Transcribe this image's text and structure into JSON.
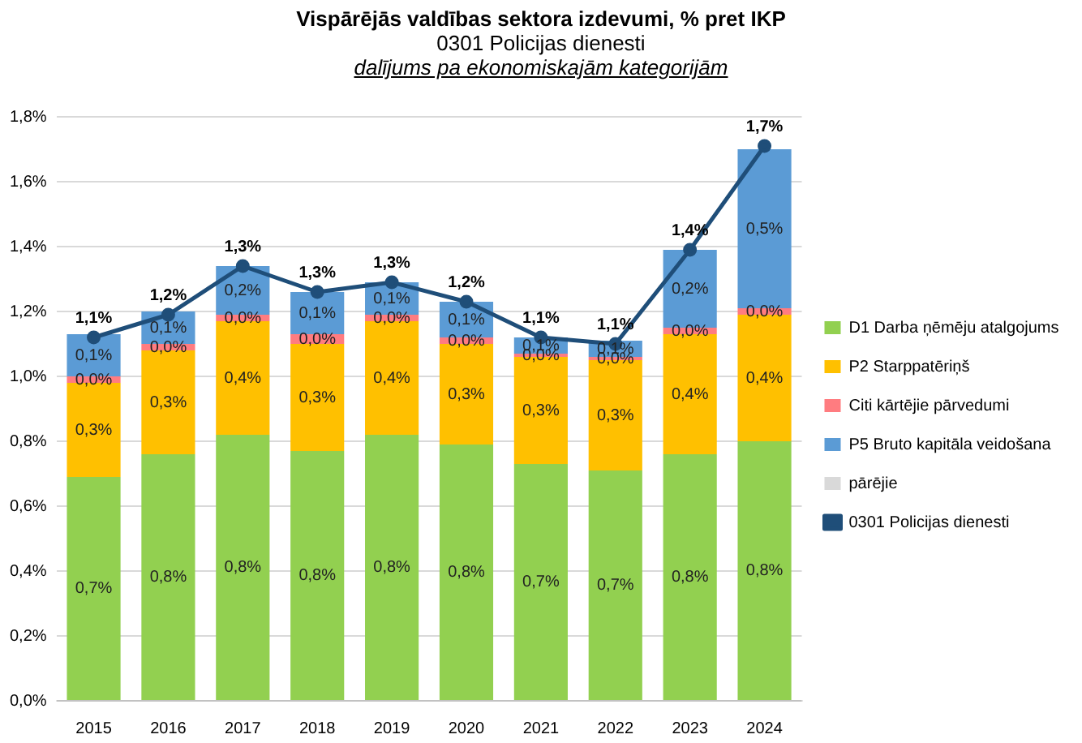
{
  "chart_data": {
    "type": "bar",
    "stacked": true,
    "title": "Vispārējās valdības sektora izdevumi, % pret IKP",
    "subtitle": "0301 Policijas dienesti",
    "annotations": [
      "dalījums pa ekonomiskajām kategorijām"
    ],
    "categories": [
      "2015",
      "2016",
      "2017",
      "2018",
      "2019",
      "2020",
      "2021",
      "2022",
      "2023",
      "2024"
    ],
    "ylim": [
      0,
      1.8
    ],
    "yticks": [
      {
        "value": 0,
        "label": "0,0%"
      },
      {
        "value": 0.2,
        "label": "0,2%"
      },
      {
        "value": 0.4,
        "label": "0,4%"
      },
      {
        "value": 0.6,
        "label": "0,6%"
      },
      {
        "value": 0.8,
        "label": "0,8%"
      },
      {
        "value": 1,
        "label": "1,0%"
      },
      {
        "value": 1.2,
        "label": "1,2%"
      },
      {
        "value": 1.4,
        "label": "1,4%"
      },
      {
        "value": 1.6,
        "label": "1,6%"
      },
      {
        "value": 1.8,
        "label": "1,8%"
      }
    ],
    "grid": "y",
    "legend": "right",
    "series": [
      {
        "name": "D1 Darba ņēmēju atalgojums",
        "color": "#92d050",
        "values": [
          0.69,
          0.76,
          0.82,
          0.77,
          0.82,
          0.79,
          0.73,
          0.71,
          0.76,
          0.8
        ],
        "value_labels": [
          "0,7%",
          "0,8%",
          "0,8%",
          "0,8%",
          "0,8%",
          "0,8%",
          "0,7%",
          "0,7%",
          "0,8%",
          "0,8%"
        ]
      },
      {
        "name": "P2 Starppatēriņš",
        "color": "#ffc000",
        "values": [
          0.29,
          0.32,
          0.35,
          0.33,
          0.35,
          0.31,
          0.33,
          0.34,
          0.37,
          0.39
        ],
        "value_labels": [
          "0,3%",
          "0,3%",
          "0,4%",
          "0,3%",
          "0,4%",
          "0,3%",
          "0,3%",
          "0,3%",
          "0,4%",
          "0,4%"
        ]
      },
      {
        "name": "Citi kārtējie pārvedumi",
        "color": "#ff7c80",
        "values": [
          0.02,
          0.02,
          0.02,
          0.03,
          0.02,
          0.02,
          0.01,
          0.01,
          0.02,
          0.02
        ],
        "value_labels": [
          "0,0%",
          "0,0%",
          "0,0%",
          "0,0%",
          "0,0%",
          "0,0%",
          "0,0%",
          "0,0%",
          "0,0%",
          "0,0%"
        ]
      },
      {
        "name": "P5 Bruto kapitāla veidošana",
        "color": "#5b9bd5",
        "values": [
          0.13,
          0.1,
          0.15,
          0.13,
          0.1,
          0.11,
          0.05,
          0.05,
          0.24,
          0.49
        ],
        "value_labels": [
          "0,1%",
          "0,1%",
          "0,2%",
          "0,1%",
          "0,1%",
          "0,1%",
          "0,1%",
          "0,1%",
          "0,2%",
          "0,5%"
        ]
      },
      {
        "name": "pārējie",
        "color": "#d9d9d9",
        "values": [
          0,
          0,
          0,
          0,
          0,
          0,
          0,
          0,
          0,
          0
        ]
      },
      {
        "name": "0301 Policijas dienesti",
        "type": "line",
        "color": "#1f4e79",
        "marker": "circle",
        "values": [
          1.12,
          1.19,
          1.34,
          1.26,
          1.29,
          1.23,
          1.12,
          1.1,
          1.39,
          1.71
        ],
        "value_labels": [
          "1,1%",
          "1,2%",
          "1,3%",
          "1,3%",
          "1,3%",
          "1,2%",
          "1,1%",
          "1,1%",
          "1,4%",
          "1,7%"
        ]
      }
    ]
  }
}
